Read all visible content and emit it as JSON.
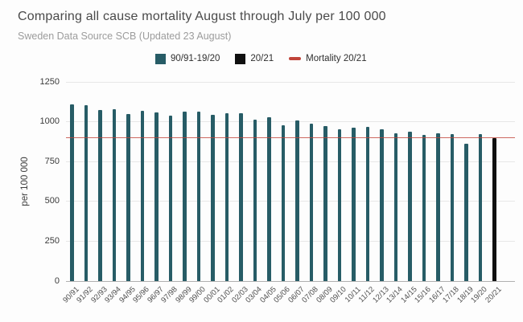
{
  "header": {
    "title": "Comparing all cause mortality August through July per 100 000",
    "subtitle": "Sweden Data Source SCB (Updated 23 August)"
  },
  "legend": {
    "items": [
      {
        "label": "90/91-19/20",
        "marker": "square",
        "color": "#275c66"
      },
      {
        "label": "20/21",
        "marker": "square",
        "color": "#101010"
      },
      {
        "label": "Mortality 20/21",
        "marker": "line",
        "color": "#c0443a"
      }
    ]
  },
  "chart_data": {
    "type": "bar",
    "title": "Comparing all cause mortality August through July per 100 000",
    "subtitle": "Sweden Data Source SCB (Updated 23 August)",
    "xlabel": "",
    "ylabel": "per 100 000",
    "ylim": [
      0,
      1250
    ],
    "yticks": [
      0,
      250,
      500,
      750,
      1000,
      1250
    ],
    "grid": true,
    "legend_position": "top",
    "categories": [
      "90/91",
      "91/92",
      "92/93",
      "93/94",
      "94/95",
      "95/96",
      "96/97",
      "97/98",
      "98/99",
      "99/00",
      "00/01",
      "01/02",
      "02/03",
      "03/04",
      "04/05",
      "05/06",
      "06/07",
      "07/08",
      "08/09",
      "09/10",
      "10/11",
      "11/12",
      "12/13",
      "13/14",
      "14/15",
      "15/16",
      "16/17",
      "17/18",
      "18/19",
      "19/20",
      "20/21"
    ],
    "series": [
      {
        "name": "90/91-19/20",
        "color": "#275c66",
        "values": [
          1108,
          1103,
          1076,
          1081,
          1048,
          1071,
          1056,
          1039,
          1061,
          1066,
          1043,
          1053,
          1051,
          1013,
          1028,
          980,
          1010,
          990,
          975,
          955,
          962,
          970,
          955,
          928,
          939,
          916,
          928,
          924,
          864,
          924,
          null
        ]
      },
      {
        "name": "20/21",
        "color": "#101010",
        "values": [
          null,
          null,
          null,
          null,
          null,
          null,
          null,
          null,
          null,
          null,
          null,
          null,
          null,
          null,
          null,
          null,
          null,
          null,
          null,
          null,
          null,
          null,
          null,
          null,
          null,
          null,
          null,
          null,
          null,
          null,
          899
        ]
      }
    ],
    "reference_line": {
      "name": "Mortality 20/21",
      "value": 900,
      "color": "#c0443a"
    }
  }
}
